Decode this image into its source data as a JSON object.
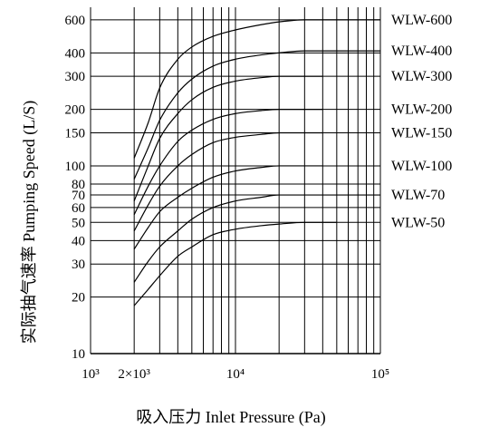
{
  "chart_data": {
    "type": "line",
    "title": "",
    "xlabel": "吸入压力 Inlet Pressure (Pa)",
    "ylabel": "实际抽气速率 Pumping Speed (L/S)",
    "x_scale": "log",
    "y_scale": "log",
    "xlim": [
      1000,
      100000
    ],
    "ylim": [
      10,
      700
    ],
    "x_ticks": [
      {
        "value": 1000,
        "label": "10³"
      },
      {
        "value": 2000,
        "label": "2×10³"
      },
      {
        "value": 10000,
        "label": "10⁴"
      },
      {
        "value": 100000,
        "label": "10⁵"
      }
    ],
    "y_ticks": [
      {
        "value": 10,
        "label": "10"
      },
      {
        "value": 20,
        "label": "20"
      },
      {
        "value": 30,
        "label": "30"
      },
      {
        "value": 40,
        "label": "40"
      },
      {
        "value": 50,
        "label": "50"
      },
      {
        "value": 60,
        "label": "60"
      },
      {
        "value": 70,
        "label": "70"
      },
      {
        "value": 80,
        "label": "80"
      },
      {
        "value": 100,
        "label": "100"
      },
      {
        "value": 150,
        "label": "150"
      },
      {
        "value": 200,
        "label": "200"
      },
      {
        "value": 300,
        "label": "300"
      },
      {
        "value": 400,
        "label": "400"
      },
      {
        "value": 600,
        "label": "600"
      }
    ],
    "grid": true,
    "legend": "right",
    "series": [
      {
        "name": "WLW-600",
        "points": [
          [
            2000,
            110
          ],
          [
            2500,
            170
          ],
          [
            3000,
            260
          ],
          [
            4000,
            370
          ],
          [
            5000,
            430
          ],
          [
            7000,
            490
          ],
          [
            10000,
            530
          ],
          [
            15000,
            565
          ],
          [
            20000,
            585
          ],
          [
            30000,
            600
          ],
          [
            100000,
            600
          ]
        ]
      },
      {
        "name": "WLW-400",
        "points": [
          [
            2000,
            85
          ],
          [
            2500,
            125
          ],
          [
            3000,
            175
          ],
          [
            4000,
            245
          ],
          [
            5000,
            290
          ],
          [
            7000,
            340
          ],
          [
            10000,
            370
          ],
          [
            15000,
            390
          ],
          [
            20000,
            400
          ],
          [
            30000,
            410
          ],
          [
            100000,
            410
          ]
        ]
      },
      {
        "name": "WLW-300",
        "points": [
          [
            2000,
            65
          ],
          [
            2500,
            100
          ],
          [
            3000,
            140
          ],
          [
            4000,
            190
          ],
          [
            5000,
            225
          ],
          [
            7000,
            262
          ],
          [
            10000,
            283
          ],
          [
            15000,
            295
          ],
          [
            20000,
            300
          ],
          [
            40000,
            300
          ]
        ]
      },
      {
        "name": "WLW-200",
        "points": [
          [
            2000,
            55
          ],
          [
            2500,
            78
          ],
          [
            3000,
            100
          ],
          [
            4000,
            135
          ],
          [
            5000,
            155
          ],
          [
            7000,
            177
          ],
          [
            10000,
            190
          ],
          [
            15000,
            197
          ],
          [
            20000,
            200
          ],
          [
            40000,
            200
          ]
        ]
      },
      {
        "name": "WLW-150",
        "points": [
          [
            2000,
            45
          ],
          [
            2500,
            62
          ],
          [
            3000,
            78
          ],
          [
            4000,
            100
          ],
          [
            5000,
            115
          ],
          [
            7000,
            133
          ],
          [
            10000,
            142
          ],
          [
            15000,
            147
          ],
          [
            20000,
            150
          ],
          [
            40000,
            150
          ]
        ]
      },
      {
        "name": "WLW-100",
        "points": [
          [
            2000,
            36
          ],
          [
            2500,
            47
          ],
          [
            3000,
            57
          ],
          [
            4000,
            68
          ],
          [
            5000,
            76
          ],
          [
            7000,
            87
          ],
          [
            10000,
            94
          ],
          [
            15000,
            98
          ],
          [
            20000,
            100
          ],
          [
            40000,
            100
          ]
        ]
      },
      {
        "name": "WLW-70",
        "points": [
          [
            2000,
            24
          ],
          [
            2500,
            31
          ],
          [
            3000,
            37
          ],
          [
            4000,
            45
          ],
          [
            5000,
            52
          ],
          [
            7000,
            60
          ],
          [
            10000,
            65
          ],
          [
            15000,
            68
          ],
          [
            20000,
            70
          ],
          [
            30000,
            70
          ],
          [
            100000,
            70
          ]
        ]
      },
      {
        "name": "WLW-50",
        "points": [
          [
            2000,
            18
          ],
          [
            2500,
            22
          ],
          [
            3000,
            26
          ],
          [
            4000,
            33
          ],
          [
            5000,
            37
          ],
          [
            7000,
            43
          ],
          [
            10000,
            46
          ],
          [
            15000,
            48
          ],
          [
            20000,
            49
          ],
          [
            30000,
            50
          ],
          [
            50000,
            50
          ]
        ]
      }
    ]
  }
}
